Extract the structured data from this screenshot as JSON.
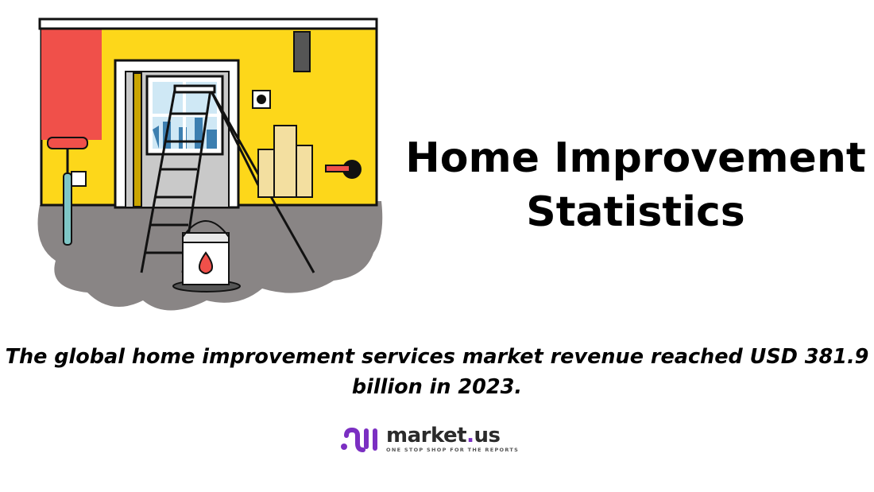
{
  "title": "Home Improvement Statistics",
  "subtitle": "The global home improvement services market revenue reached USD 381.9 billion in 2023.",
  "logo": {
    "name_main": "market",
    "name_dot": ".",
    "name_suffix": "us",
    "tagline": "ONE STOP SHOP FOR THE REPORTS",
    "color": "#7b2fc2"
  },
  "illustration": {
    "wall_color": "#fdd71a",
    "red_paint": "#f0504a",
    "floor_color": "#898585"
  }
}
